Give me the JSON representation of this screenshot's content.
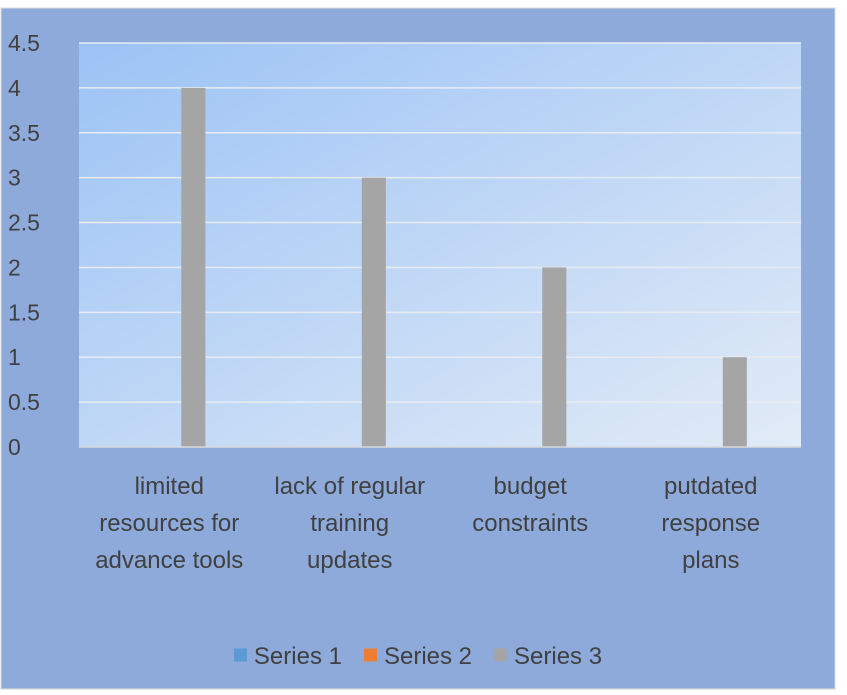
{
  "chart_data": {
    "type": "bar",
    "title": "",
    "xlabel": "",
    "ylabel": "",
    "categories": [
      [
        "limited",
        "resources for",
        "advance tools"
      ],
      [
        "lack of regular",
        "training",
        "updates"
      ],
      [
        "budget",
        "constraints"
      ],
      [
        "putdated",
        "response",
        "plans"
      ]
    ],
    "series": [
      {
        "name": "Series 1",
        "color": "#5b9bd5",
        "values": [
          null,
          null,
          null,
          null
        ]
      },
      {
        "name": "Series 2",
        "color": "#ed7d31",
        "values": [
          null,
          null,
          null,
          null
        ]
      },
      {
        "name": "Series 3",
        "color": "#a5a5a5",
        "values": [
          4,
          3,
          2,
          1
        ]
      }
    ],
    "ylim": [
      0,
      4.5
    ],
    "y_ticks": [
      "0",
      "0.5",
      "1",
      "1.5",
      "2",
      "2.5",
      "3",
      "3.5",
      "4",
      "4.5"
    ],
    "grid": true,
    "legend_position": "bottom"
  },
  "colors": {
    "frame_background": "#8eaadb",
    "plot_gradient_start": "#9cc3f5",
    "plot_gradient_end": "#e2ebf7",
    "gridline": "#e8ecf2",
    "axis_text": "#404040",
    "border": "#d9d9d9"
  }
}
